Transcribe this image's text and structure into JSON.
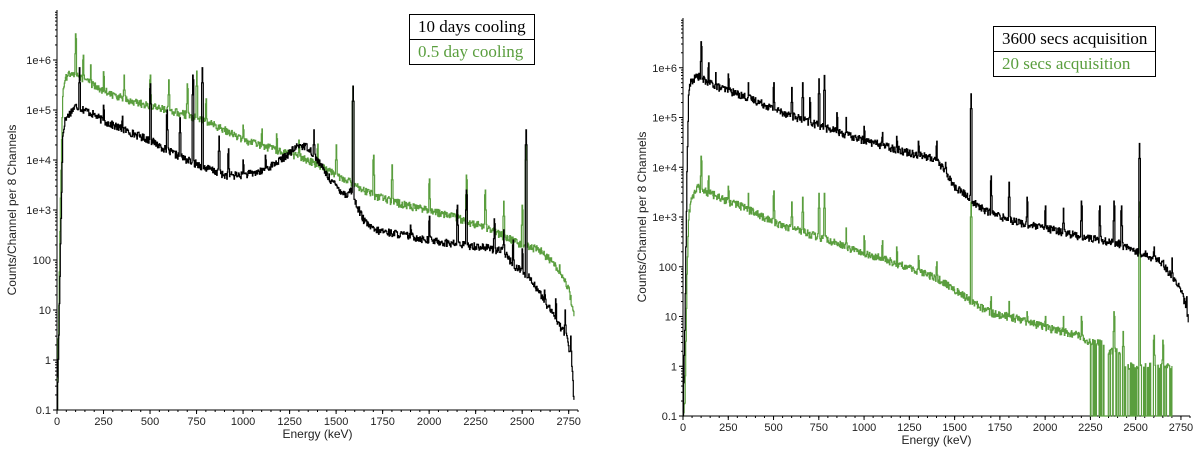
{
  "chart_data": [
    {
      "id": "left",
      "type": "line",
      "xlabel": "Energy (keV)",
      "ylabel": "Counts/Channel per 8 Channels",
      "xlim": [
        0,
        2800
      ],
      "ylim_log": [
        0.1,
        10000000
      ],
      "y_scale": "log",
      "x_ticks": [
        0,
        250,
        500,
        750,
        1000,
        1250,
        1500,
        1750,
        2000,
        2250,
        2500,
        2750
      ],
      "y_ticks": [
        0.1,
        1,
        10,
        100,
        1000,
        10000,
        100000,
        1000000
      ],
      "y_tick_labels": [
        "0.1",
        "1",
        "10",
        "100",
        "1e+3",
        "1e+4",
        "1e+5",
        "1e+6"
      ],
      "legend_position": "top-right",
      "series": [
        {
          "name": "10 days cooling",
          "color": "#000000",
          "x": [
            0,
            10,
            20,
            30,
            40,
            60,
            80,
            100,
            150,
            200,
            250,
            300,
            400,
            500,
            600,
            700,
            800,
            900,
            1000,
            1100,
            1200,
            1300,
            1350,
            1400,
            1450,
            1500,
            1550,
            1580,
            1600,
            1650,
            1700,
            1800,
            1900,
            2000,
            2100,
            2200,
            2300,
            2400,
            2450,
            2500,
            2550,
            2600,
            2650,
            2700,
            2740,
            2760,
            2770,
            2780
          ],
          "y": [
            0.1,
            5,
            500,
            30000,
            60000,
            80000,
            100000,
            120000,
            100000,
            80000,
            60000,
            50000,
            35000,
            25000,
            15000,
            10000,
            7000,
            5000,
            5000,
            6000,
            10000,
            20000,
            18000,
            10000,
            5000,
            3000,
            2000,
            2500,
            1500,
            600,
            400,
            350,
            300,
            250,
            220,
            200,
            180,
            150,
            80,
            60,
            40,
            20,
            10,
            5,
            3,
            1,
            0.5,
            0.1
          ],
          "peaks": [
            [
              120,
              700000
            ],
            [
              250,
              150000
            ],
            [
              350,
              90000
            ],
            [
              500,
              400000
            ],
            [
              590,
              120000
            ],
            [
              660,
              70000
            ],
            [
              730,
              600000
            ],
            [
              780,
              700000
            ],
            [
              870,
              30000
            ],
            [
              920,
              20000
            ],
            [
              1000,
              12000
            ],
            [
              1120,
              15000
            ],
            [
              1250,
              18000
            ],
            [
              1380,
              40000
            ],
            [
              1590,
              300000
            ],
            [
              1750,
              500
            ],
            [
              1900,
              600
            ],
            [
              2000,
              900
            ],
            [
              2150,
              1500
            ],
            [
              2200,
              3000
            ],
            [
              2350,
              800
            ],
            [
              2400,
              400
            ],
            [
              2450,
              300
            ],
            [
              2500,
              200
            ],
            [
              2520,
              40000
            ],
            [
              2620,
              30
            ],
            [
              2680,
              20
            ],
            [
              2730,
              10
            ],
            [
              2760,
              3
            ]
          ]
        },
        {
          "name": "0.5 day cooling",
          "color": "#5a9e3e",
          "x": [
            0,
            10,
            20,
            30,
            40,
            60,
            80,
            100,
            150,
            200,
            250,
            300,
            400,
            500,
            600,
            700,
            800,
            900,
            1000,
            1100,
            1200,
            1300,
            1400,
            1500,
            1580,
            1600,
            1650,
            1700,
            1800,
            1900,
            2000,
            2100,
            2200,
            2300,
            2400,
            2450,
            2500,
            2550,
            2600,
            2650,
            2700,
            2750,
            2780
          ],
          "y": [
            0.1,
            20,
            5000,
            200000,
            400000,
            500000,
            600000,
            500000,
            400000,
            300000,
            250000,
            200000,
            150000,
            120000,
            100000,
            80000,
            60000,
            40000,
            25000,
            20000,
            15000,
            12000,
            8000,
            5000,
            3500,
            3000,
            2500,
            2000,
            1500,
            1200,
            1000,
            800,
            600,
            450,
            300,
            250,
            200,
            180,
            150,
            100,
            60,
            25,
            8
          ],
          "peaks": [
            [
              100,
              4000000
            ],
            [
              140,
              1500000
            ],
            [
              180,
              800000
            ],
            [
              250,
              700000
            ],
            [
              360,
              500000
            ],
            [
              500,
              600000
            ],
            [
              600,
              400000
            ],
            [
              700,
              400000
            ],
            [
              750,
              600000
            ],
            [
              800,
              200000
            ],
            [
              850,
              60000
            ],
            [
              1000,
              60000
            ],
            [
              1100,
              50000
            ],
            [
              1180,
              40000
            ],
            [
              1300,
              30000
            ],
            [
              1400,
              25000
            ],
            [
              1500,
              20000
            ],
            [
              1590,
              300000
            ],
            [
              1700,
              15000
            ],
            [
              1800,
              8000
            ],
            [
              2000,
              5000
            ],
            [
              2200,
              6000
            ],
            [
              2300,
              3000
            ],
            [
              2400,
              1500
            ],
            [
              2500,
              1500
            ],
            [
              2520,
              20000
            ],
            [
              2600,
              200
            ],
            [
              2700,
              80
            ],
            [
              2750,
              30
            ]
          ]
        }
      ]
    },
    {
      "id": "right",
      "type": "line",
      "xlabel": "Energy (keV)",
      "ylabel": "Counts/Channel per 8 Channels",
      "xlim": [
        0,
        2800
      ],
      "ylim_log": [
        0.1,
        10000000
      ],
      "y_scale": "log",
      "x_ticks": [
        0,
        250,
        500,
        750,
        1000,
        1250,
        1500,
        1750,
        2000,
        2250,
        2500,
        2750
      ],
      "y_ticks": [
        0.1,
        1,
        10,
        100,
        1000,
        10000,
        100000,
        1000000
      ],
      "y_tick_labels": [
        "0.1",
        "1",
        "10",
        "100",
        "1e+3",
        "1e+4",
        "1e+5",
        "1e+6"
      ],
      "legend_position": "top-right",
      "series": [
        {
          "name": "3600 secs acquisition",
          "color": "#000000",
          "x": [
            0,
            10,
            20,
            30,
            40,
            60,
            80,
            100,
            150,
            200,
            250,
            300,
            400,
            500,
            600,
            700,
            800,
            900,
            1000,
            1100,
            1200,
            1300,
            1350,
            1400,
            1450,
            1500,
            1550,
            1580,
            1600,
            1650,
            1700,
            1800,
            1900,
            2000,
            2100,
            2200,
            2300,
            2400,
            2450,
            2500,
            2550,
            2600,
            2650,
            2700,
            2740,
            2760,
            2780,
            2790
          ],
          "y": [
            0.1,
            10,
            5000,
            300000,
            500000,
            600000,
            700000,
            600000,
            500000,
            400000,
            350000,
            300000,
            220000,
            150000,
            110000,
            80000,
            60000,
            45000,
            35000,
            28000,
            22000,
            18000,
            16000,
            14000,
            8000,
            4000,
            3000,
            2500,
            2000,
            1500,
            1200,
            900,
            700,
            600,
            500,
            400,
            350,
            300,
            250,
            200,
            180,
            150,
            120,
            60,
            40,
            25,
            15,
            8
          ],
          "peaks": [
            [
              100,
              4000000
            ],
            [
              140,
              1500000
            ],
            [
              180,
              800000
            ],
            [
              250,
              900000
            ],
            [
              360,
              500000
            ],
            [
              500,
              600000
            ],
            [
              600,
              400000
            ],
            [
              660,
              500000
            ],
            [
              700,
              300000
            ],
            [
              750,
              600000
            ],
            [
              780,
              700000
            ],
            [
              850,
              150000
            ],
            [
              900,
              100000
            ],
            [
              1000,
              80000
            ],
            [
              1100,
              60000
            ],
            [
              1180,
              50000
            ],
            [
              1300,
              40000
            ],
            [
              1400,
              40000
            ],
            [
              1450,
              15000
            ],
            [
              1590,
              300000
            ],
            [
              1700,
              8000
            ],
            [
              1800,
              5000
            ],
            [
              1900,
              3000
            ],
            [
              2000,
              2000
            ],
            [
              2100,
              1500
            ],
            [
              2200,
              2500
            ],
            [
              2300,
              2000
            ],
            [
              2380,
              2500
            ],
            [
              2420,
              2000
            ],
            [
              2520,
              30000
            ],
            [
              2600,
              300
            ],
            [
              2700,
              150
            ],
            [
              2780,
              30
            ]
          ]
        },
        {
          "name": "20 secs acquisition",
          "color": "#5a9e3e",
          "x": [
            0,
            10,
            20,
            30,
            40,
            60,
            80,
            100,
            150,
            200,
            250,
            300,
            400,
            500,
            600,
            700,
            800,
            900,
            1000,
            1100,
            1200,
            1300,
            1400,
            1500,
            1580,
            1600,
            1650,
            1700,
            1800,
            1900,
            2000,
            2100,
            2200,
            2250,
            2300,
            2350,
            2400,
            2450,
            2500,
            2550,
            2600,
            2650,
            2700
          ],
          "y": [
            0.1,
            0.2,
            50,
            1000,
            2000,
            3000,
            4000,
            3500,
            3000,
            2500,
            2000,
            1800,
            1200,
            800,
            600,
            450,
            350,
            250,
            180,
            150,
            110,
            80,
            60,
            35,
            22,
            20,
            15,
            12,
            10,
            8,
            6,
            5,
            4,
            3,
            3,
            2,
            2,
            1,
            1,
            1,
            1,
            1,
            1
          ],
          "peaks": [
            [
              100,
              20000
            ],
            [
              140,
              8000
            ],
            [
              250,
              5000
            ],
            [
              360,
              3000
            ],
            [
              500,
              4000
            ],
            [
              600,
              2000
            ],
            [
              660,
              2500
            ],
            [
              750,
              3000
            ],
            [
              780,
              3000
            ],
            [
              900,
              600
            ],
            [
              1000,
              500
            ],
            [
              1100,
              400
            ],
            [
              1180,
              300
            ],
            [
              1300,
              200
            ],
            [
              1400,
              150
            ],
            [
              1590,
              2000
            ],
            [
              1700,
              30
            ],
            [
              1800,
              20
            ],
            [
              1900,
              15
            ],
            [
              2000,
              12
            ],
            [
              2100,
              10
            ],
            [
              2200,
              12
            ],
            [
              2380,
              15
            ],
            [
              2430,
              5
            ],
            [
              2520,
              2000
            ],
            [
              2600,
              5
            ],
            [
              2650,
              4
            ]
          ],
          "dropouts_from": 2250
        }
      ]
    }
  ]
}
